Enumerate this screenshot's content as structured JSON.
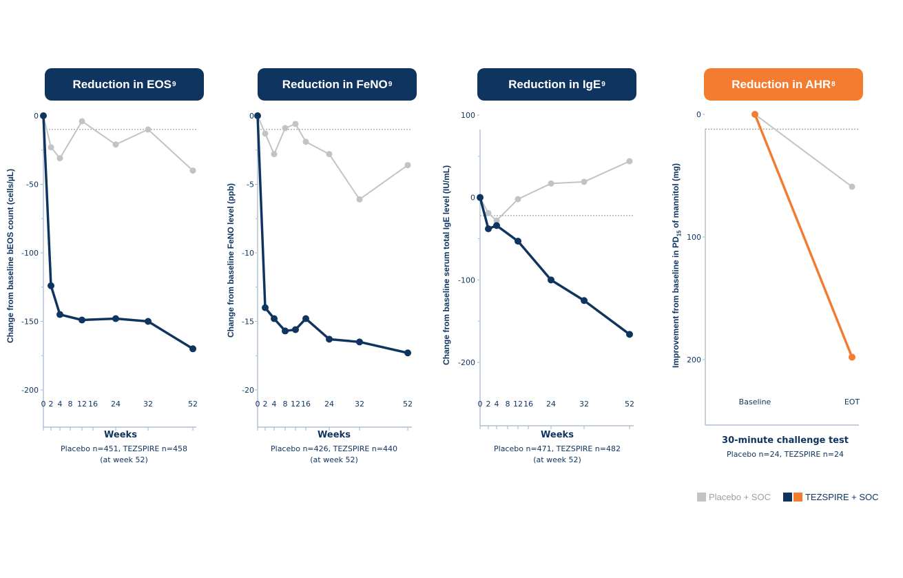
{
  "colors": {
    "navy": "#0f3460",
    "orange": "#f47c30",
    "placebo": "#c0c4c7",
    "axis": "#9fb3c8",
    "text": "#0f3460"
  },
  "legend": {
    "placebo_label": "Placebo + SOC",
    "tezspire_label": "TEZSPIRE + SOC"
  },
  "chart_data": [
    {
      "type": "line",
      "title": "Reduction in EOS",
      "title_superscript": "9",
      "ylabel": "Change from baseline bEOS count (cells/µL)",
      "xlabel": "Weeks",
      "note_line1": "Placebo n=451, TEZSPIRE n=458",
      "note_line2": "(at week 52)",
      "ylim": [
        -200,
        0
      ],
      "yticks": [
        0,
        -50,
        -100,
        -150,
        -200
      ],
      "x": [
        0,
        2,
        4,
        8,
        12,
        16,
        24,
        32,
        52
      ],
      "reference_line": -10,
      "series": [
        {
          "name": "Placebo + SOC",
          "x": [
            0,
            2,
            4,
            12,
            24,
            32,
            52
          ],
          "values": [
            0,
            -23,
            -31,
            -4,
            -21,
            -10,
            -40
          ]
        },
        {
          "name": "TEZSPIRE + SOC",
          "x": [
            0,
            2,
            4,
            12,
            24,
            32,
            52
          ],
          "values": [
            0,
            -124,
            -145,
            -149,
            -148,
            -150,
            -170
          ]
        }
      ]
    },
    {
      "type": "line",
      "title": "Reduction in FeNO",
      "title_superscript": "9",
      "ylabel": "Change from baseline FeNO level (ppb)",
      "xlabel": "Weeks",
      "note_line1": "Placebo n=426, TEZSPIRE n=440",
      "note_line2": "(at week 52)",
      "ylim": [
        -20,
        0
      ],
      "yticks": [
        0,
        -5,
        -10,
        -15,
        -20
      ],
      "x": [
        0,
        2,
        4,
        8,
        12,
        16,
        24,
        32,
        52
      ],
      "reference_line": -1,
      "series": [
        {
          "name": "Placebo + SOC",
          "x": [
            0,
            2,
            4,
            8,
            12,
            16,
            24,
            32,
            52
          ],
          "values": [
            0,
            -1.3,
            -2.8,
            -0.9,
            -0.6,
            -1.9,
            -2.8,
            -6.1,
            -3.6
          ]
        },
        {
          "name": "TEZSPIRE + SOC",
          "x": [
            0,
            2,
            4,
            8,
            12,
            16,
            24,
            32,
            52
          ],
          "values": [
            0,
            -14.0,
            -14.8,
            -15.7,
            -15.6,
            -14.8,
            -16.3,
            -16.5,
            -17.3
          ]
        }
      ]
    },
    {
      "type": "line",
      "title": "Reduction in IgE",
      "title_superscript": "9",
      "ylabel": "Change from baseline serum total IgE level (IU/mL)",
      "xlabel": "Weeks",
      "note_line1": "Placebo n=471, TEZSPIRE n=482",
      "note_line2": "(at week 52)",
      "ylim": [
        -250,
        100
      ],
      "yticks": [
        100,
        0,
        -100,
        -200
      ],
      "x": [
        0,
        2,
        4,
        8,
        12,
        16,
        24,
        32,
        52
      ],
      "reference_line": -22,
      "series": [
        {
          "name": "Placebo + SOC",
          "x": [
            0,
            2,
            4,
            12,
            24,
            32,
            52
          ],
          "values": [
            0,
            -19,
            -28,
            -2,
            17,
            19,
            44
          ]
        },
        {
          "name": "TEZSPIRE + SOC",
          "x": [
            0,
            2,
            4,
            12,
            24,
            32,
            52
          ],
          "values": [
            0,
            -38,
            -34,
            -53,
            -100,
            -125,
            -166
          ]
        }
      ]
    },
    {
      "type": "line",
      "title": "Reduction in AHR",
      "title_superscript": "8",
      "ylabel_pre": "Improvement from baseline in PD",
      "ylabel_sub": "15",
      "ylabel_post": " of mannitol (mg)",
      "xlabel": "30-minute challenge test",
      "note_line1": "Placebo n=24, TEZSPIRE n=24",
      "ylim": [
        0,
        250
      ],
      "yticks": [
        0,
        100,
        200
      ],
      "categories": [
        "Baseline",
        "EOT"
      ],
      "reference_line": 12,
      "series": [
        {
          "name": "Placebo + SOC",
          "values": [
            0,
            59
          ]
        },
        {
          "name": "TEZSPIRE + SOC",
          "values": [
            0,
            198
          ]
        }
      ]
    }
  ]
}
